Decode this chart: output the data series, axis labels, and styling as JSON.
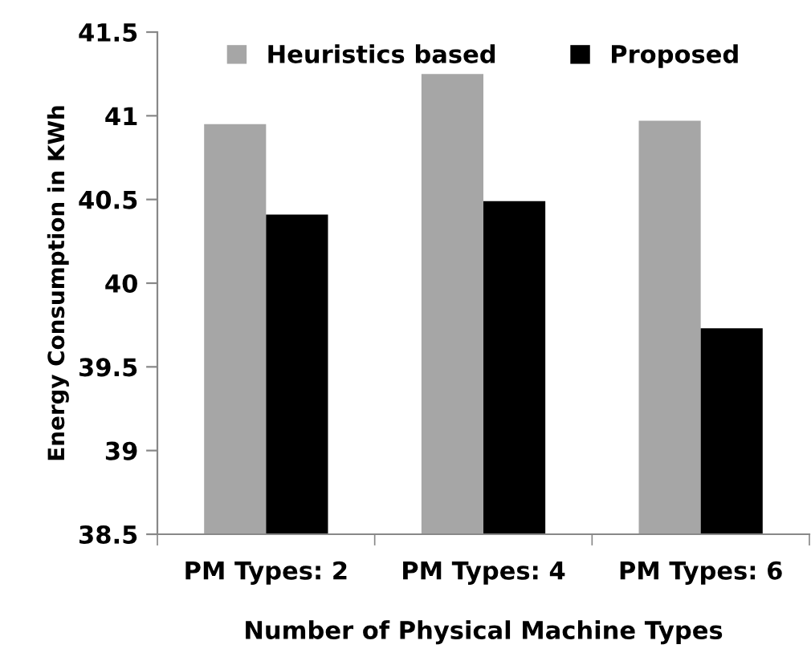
{
  "chart_data": {
    "type": "bar",
    "xlabel": "Number of Physical Machine Types",
    "ylabel": "Energy Consumption in KWh",
    "categories": [
      "PM Types: 2",
      "PM Types: 4",
      "PM Types: 6"
    ],
    "series": [
      {
        "name": "Heuristics based",
        "color": "#a6a6a6",
        "values": [
          40.95,
          41.25,
          40.97
        ]
      },
      {
        "name": "Proposed",
        "color": "#000000",
        "values": [
          40.41,
          40.49,
          39.73
        ]
      }
    ],
    "ylim": [
      38.5,
      41.5
    ],
    "yticks": [
      38.5,
      39,
      39.5,
      40,
      40.5,
      41,
      41.5
    ],
    "grid": false,
    "legend": "top"
  }
}
